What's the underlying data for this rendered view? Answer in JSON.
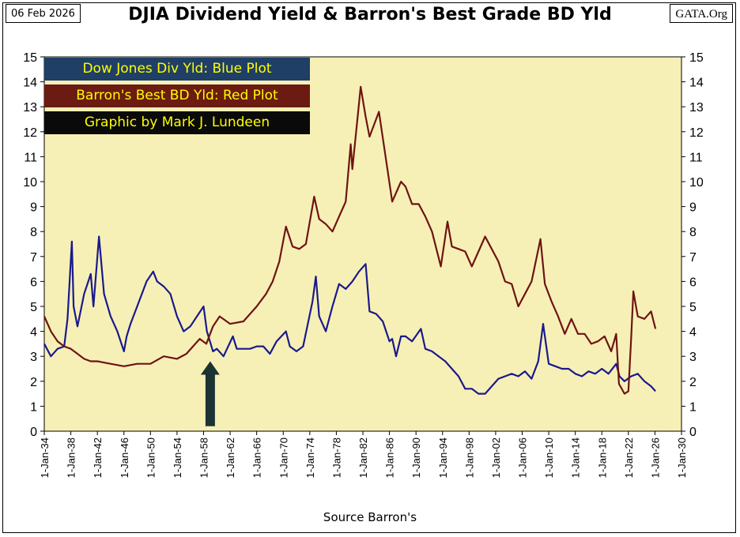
{
  "header": {
    "date": "06 Feb 2026",
    "source": "GATA.Org",
    "title": "DJIA Dividend Yield & Barron's Best Grade BD Yld"
  },
  "legend": {
    "blue": "Dow Jones Div Yld: Blue Plot",
    "red": "Barron's Best BD Yld: Red Plot",
    "credit": "Graphic by Mark J. Lundeen"
  },
  "colors": {
    "plot_background": "#f7f0b6",
    "dow_series": "#1a1a8c",
    "bond_series": "#6e1414",
    "legend_blue_bg": "#1f3f66",
    "legend_red_bg": "#6b1b12",
    "legend_text": "#ffff00",
    "arrow": "#1c3333"
  },
  "chart_data": {
    "type": "line",
    "title": "DJIA Dividend Yield & Barron's Best Grade BD Yld",
    "xlabel": "Source Barron's",
    "ylabel": "",
    "x_tick_labels": [
      "1-Jan-34",
      "1-Jan-38",
      "1-Jan-42",
      "1-Jan-46",
      "1-Jan-50",
      "1-Jan-54",
      "1-Jan-58",
      "1-Jan-62",
      "1-Jan-66",
      "1-Jan-70",
      "1-Jan-74",
      "1-Jan-78",
      "1-Jan-82",
      "1-Jan-86",
      "1-Jan-90",
      "1-Jan-94",
      "1-Jan-98",
      "1-Jan-02",
      "1-Jan-06",
      "1-Jan-10",
      "1-Jan-14",
      "1-Jan-18",
      "1-Jan-22",
      "1-Jan-26",
      "1-Jan-30"
    ],
    "xlim": [
      "1934-01-01",
      "2030-01-01"
    ],
    "ylim": [
      0,
      15
    ],
    "y_ticks": [
      0,
      1,
      2,
      3,
      4,
      5,
      6,
      7,
      8,
      9,
      10,
      11,
      12,
      13,
      14,
      15
    ],
    "grid": false,
    "legend_position": "top-left",
    "annotation": {
      "type": "arrow",
      "x": "1959-01-01",
      "y_from": 0.2,
      "y_to": 2.8
    },
    "series": [
      {
        "color": "#1a1a8c",
        "x": [
          "1934-01-01",
          "1935-01-01",
          "1936-01-01",
          "1937-01-01",
          "1937-07-01",
          "1938-03-01",
          "1938-06-01",
          "1939-01-01",
          "1940-01-01",
          "1941-01-01",
          "1941-06-01",
          "1942-04-01",
          "1943-01-01",
          "1944-01-01",
          "1945-01-01",
          "1946-01-01",
          "1946-06-01",
          "1947-01-01",
          "1948-01-01",
          "1949-06-01",
          "1950-06-01",
          "1951-01-01",
          "1952-01-01",
          "1953-01-01",
          "1954-01-01",
          "1955-01-01",
          "1956-01-01",
          "1957-01-01",
          "1958-01-01",
          "1958-07-01",
          "1959-06-01",
          "1960-01-01",
          "1961-01-01",
          "1962-06-01",
          "1963-01-01",
          "1965-01-01",
          "1966-01-01",
          "1967-01-01",
          "1968-01-01",
          "1969-01-01",
          "1970-06-01",
          "1971-01-01",
          "1972-01-01",
          "1973-01-01",
          "1974-06-01",
          "1974-12-01",
          "1975-06-01",
          "1976-06-01",
          "1977-06-01",
          "1978-06-01",
          "1979-06-01",
          "1980-06-01",
          "1981-06-01",
          "1982-06-01",
          "1983-01-01",
          "1984-01-01",
          "1985-01-01",
          "1986-01-01",
          "1986-06-01",
          "1987-01-01",
          "1987-10-01",
          "1988-06-01",
          "1989-06-01",
          "1990-10-01",
          "1991-06-01",
          "1992-06-01",
          "1993-06-01",
          "1994-06-01",
          "1995-06-01",
          "1996-06-01",
          "1997-06-01",
          "1998-06-01",
          "1999-06-01",
          "2000-06-01",
          "2001-06-01",
          "2002-06-01",
          "2003-06-01",
          "2004-06-01",
          "2005-06-01",
          "2006-06-01",
          "2007-06-01",
          "2008-06-01",
          "2009-03-01",
          "2010-01-01",
          "2011-01-01",
          "2012-01-01",
          "2013-01-01",
          "2014-01-01",
          "2015-01-01",
          "2016-01-01",
          "2017-01-01",
          "2018-01-01",
          "2019-01-01",
          "2020-03-01",
          "2020-09-01",
          "2021-06-01",
          "2022-06-01",
          "2023-06-01",
          "2024-06-01",
          "2025-06-01",
          "2026-02-01"
        ],
        "values": [
          3.5,
          3.0,
          3.3,
          3.4,
          4.5,
          7.6,
          5.0,
          4.2,
          5.5,
          6.3,
          5.0,
          7.8,
          5.5,
          4.6,
          4.0,
          3.2,
          3.8,
          4.3,
          5.0,
          6.0,
          6.4,
          6.0,
          5.8,
          5.5,
          4.6,
          4.0,
          4.2,
          4.6,
          5.0,
          4.0,
          3.2,
          3.3,
          3.0,
          3.8,
          3.3,
          3.3,
          3.4,
          3.4,
          3.1,
          3.6,
          4.0,
          3.4,
          3.2,
          3.4,
          5.2,
          6.2,
          4.6,
          4.0,
          5.0,
          5.9,
          5.7,
          6.0,
          6.4,
          6.7,
          4.8,
          4.7,
          4.4,
          3.6,
          3.7,
          3.0,
          3.8,
          3.8,
          3.6,
          4.1,
          3.3,
          3.2,
          3.0,
          2.8,
          2.5,
          2.2,
          1.7,
          1.7,
          1.5,
          1.5,
          1.8,
          2.1,
          2.2,
          2.3,
          2.2,
          2.4,
          2.1,
          2.8,
          4.3,
          2.7,
          2.6,
          2.5,
          2.5,
          2.3,
          2.2,
          2.4,
          2.3,
          2.5,
          2.3,
          2.7,
          2.2,
          2.0,
          2.2,
          2.3,
          2.0,
          1.8,
          1.6
        ]
      },
      {
        "color": "#6e1414",
        "x": [
          "1934-01-01",
          "1935-01-01",
          "1936-01-01",
          "1937-01-01",
          "1938-01-01",
          "1939-01-01",
          "1940-01-01",
          "1941-01-01",
          "1942-01-01",
          "1944-01-01",
          "1946-01-01",
          "1948-01-01",
          "1950-01-01",
          "1952-01-01",
          "1954-01-01",
          "1955-06-01",
          "1957-06-01",
          "1958-06-01",
          "1959-06-01",
          "1960-06-01",
          "1962-01-01",
          "1964-01-01",
          "1966-01-01",
          "1967-06-01",
          "1968-06-01",
          "1969-06-01",
          "1970-06-01",
          "1971-06-01",
          "1972-06-01",
          "1973-06-01",
          "1974-09-01",
          "1975-06-01",
          "1976-06-01",
          "1977-06-01",
          "1978-06-01",
          "1979-06-01",
          "1980-03-01",
          "1980-06-01",
          "1981-09-01",
          "1982-06-01",
          "1983-01-01",
          "1984-06-01",
          "1985-06-01",
          "1986-06-01",
          "1987-10-01",
          "1988-06-01",
          "1989-06-01",
          "1990-06-01",
          "1991-06-01",
          "1992-06-01",
          "1993-10-01",
          "1994-10-01",
          "1995-06-01",
          "1996-06-01",
          "1997-06-01",
          "1998-06-01",
          "1999-06-01",
          "2000-06-01",
          "2001-06-01",
          "2002-06-01",
          "2003-06-01",
          "2004-06-01",
          "2005-06-01",
          "2006-06-01",
          "2007-06-01",
          "2008-10-01",
          "2009-06-01",
          "2010-06-01",
          "2011-06-01",
          "2012-06-01",
          "2013-06-01",
          "2014-06-01",
          "2015-06-01",
          "2016-06-01",
          "2017-06-01",
          "2018-06-01",
          "2019-06-01",
          "2020-03-01",
          "2020-08-01",
          "2021-06-01",
          "2022-01-01",
          "2022-06-01",
          "2022-10-01",
          "2023-06-01",
          "2024-06-01",
          "2025-06-01",
          "2026-02-01"
        ],
        "values": [
          4.6,
          4.0,
          3.6,
          3.4,
          3.3,
          3.1,
          2.9,
          2.8,
          2.8,
          2.7,
          2.6,
          2.7,
          2.7,
          3.0,
          2.9,
          3.1,
          3.7,
          3.5,
          4.2,
          4.6,
          4.3,
          4.4,
          5.0,
          5.5,
          6.0,
          6.8,
          8.2,
          7.4,
          7.3,
          7.5,
          9.4,
          8.5,
          8.3,
          8.0,
          8.6,
          9.2,
          11.5,
          10.5,
          13.8,
          12.6,
          11.8,
          12.8,
          11.0,
          9.2,
          10.0,
          9.8,
          9.1,
          9.1,
          8.6,
          8.0,
          6.6,
          8.4,
          7.4,
          7.3,
          7.2,
          6.6,
          7.2,
          7.8,
          7.3,
          6.8,
          6.0,
          5.9,
          5.0,
          5.5,
          6.0,
          7.7,
          5.9,
          5.2,
          4.6,
          3.9,
          4.5,
          3.9,
          3.9,
          3.5,
          3.6,
          3.8,
          3.2,
          3.9,
          1.9,
          1.5,
          1.6,
          3.7,
          5.6,
          4.6,
          4.5,
          4.8,
          4.1
        ]
      }
    ]
  },
  "footer": {
    "source_label": "Source Barron's"
  }
}
